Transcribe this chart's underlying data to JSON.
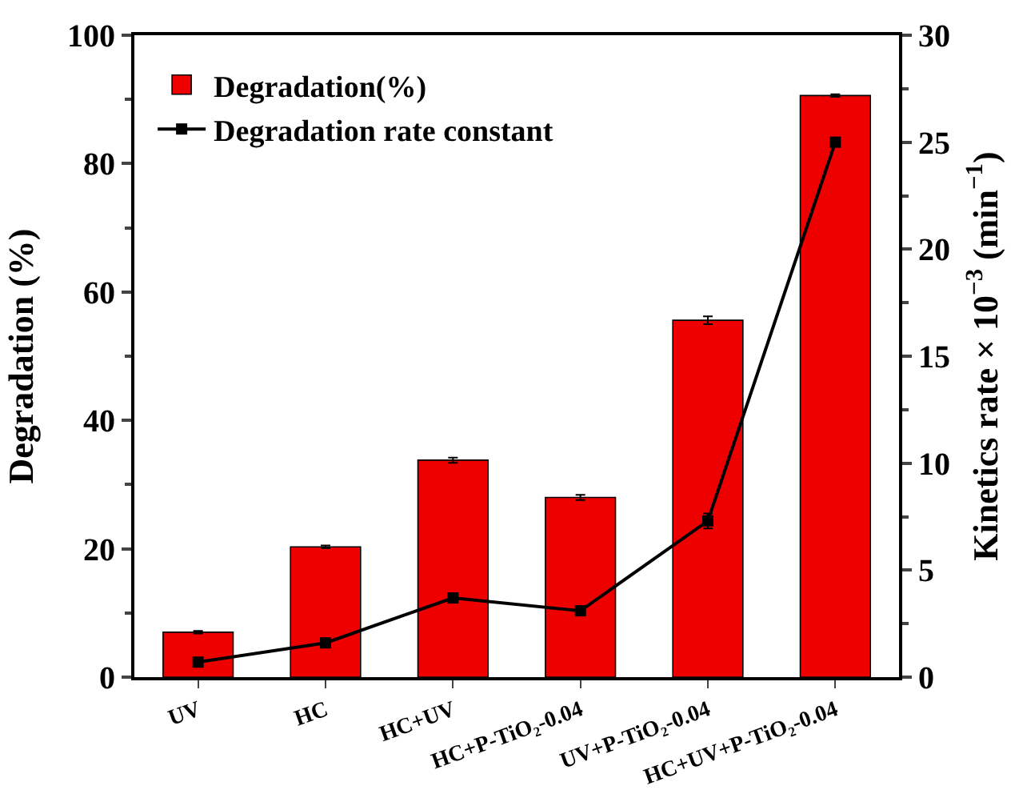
{
  "chart_data": {
    "type": "bar",
    "ylabel": "Degradation (%)",
    "y2label": "Kinetics rate × 10$^{−3}$ (min$^{−1}$)",
    "categories": [
      "UV",
      "HC",
      "HC+UV",
      "HC+P-TiO₂-0.04",
      "UV+P-TiO₂-0.04",
      "HC+UV+P-TiO₂-0.04"
    ],
    "series": [
      {
        "name": "Degradation(%)",
        "color": "#ee0000",
        "values": [
          7.0,
          20.3,
          33.8,
          28.0,
          55.6,
          90.6
        ],
        "errors": [
          0.2,
          0.2,
          0.4,
          0.4,
          0.6,
          0.2
        ]
      },
      {
        "name": "Degradation rate constant",
        "type": "line",
        "axis": "y2",
        "color": "#000000",
        "values": [
          0.7,
          1.6,
          3.7,
          3.1,
          7.3,
          25.0
        ],
        "errors": [
          null,
          null,
          null,
          null,
          0.35,
          null
        ]
      }
    ],
    "ylim": [
      0,
      100
    ],
    "yticks": [
      0,
      20,
      40,
      60,
      80,
      100
    ],
    "y2lim": [
      0,
      30
    ],
    "y2ticks": [
      0,
      5,
      10,
      15,
      20,
      25,
      30
    ],
    "legend": "top left",
    "marker": "square",
    "line_style": "solid"
  }
}
